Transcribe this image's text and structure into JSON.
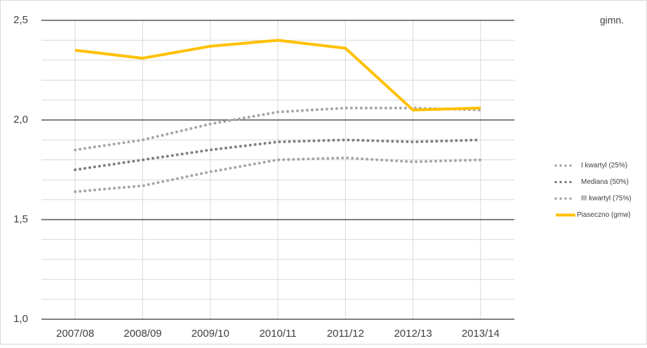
{
  "chart_data": {
    "type": "line",
    "title": "gimn.",
    "categories": [
      "2007/08",
      "2008/09",
      "2009/10",
      "2010/11",
      "2011/12",
      "2012/13",
      "2013/14"
    ],
    "series": [
      {
        "name": "I kwartyl (25%)",
        "color": "#a6a6a6",
        "style": "dotted",
        "values": [
          1.85,
          1.9,
          1.98,
          2.04,
          2.06,
          2.06,
          2.05
        ]
      },
      {
        "name": "Mediana (50%)",
        "color": "#7f7f7f",
        "style": "dotted",
        "values": [
          1.75,
          1.8,
          1.85,
          1.89,
          1.9,
          1.89,
          1.9
        ]
      },
      {
        "name": "III kwartyl (75%)",
        "color": "#a6a6a6",
        "style": "dotted",
        "values": [
          1.64,
          1.67,
          1.74,
          1.8,
          1.81,
          1.79,
          1.8
        ]
      },
      {
        "name": "Piaseczno (gmw)",
        "color": "#ffc000",
        "style": "solid",
        "values": [
          2.35,
          2.31,
          2.37,
          2.4,
          2.36,
          2.05,
          2.06
        ]
      }
    ],
    "ylim": [
      1.0,
      2.5
    ],
    "yticks": [
      {
        "value": 1.0,
        "label": "1,0"
      },
      {
        "value": 1.5,
        "label": "1,5"
      },
      {
        "value": 2.0,
        "label": "2,0"
      },
      {
        "value": 2.5,
        "label": "2,5"
      }
    ],
    "minor_yticks": [
      1.1,
      1.2,
      1.3,
      1.4,
      1.6,
      1.7,
      1.8,
      1.9,
      2.1,
      2.2,
      2.3,
      2.4
    ],
    "grid": true,
    "legend": "right"
  }
}
